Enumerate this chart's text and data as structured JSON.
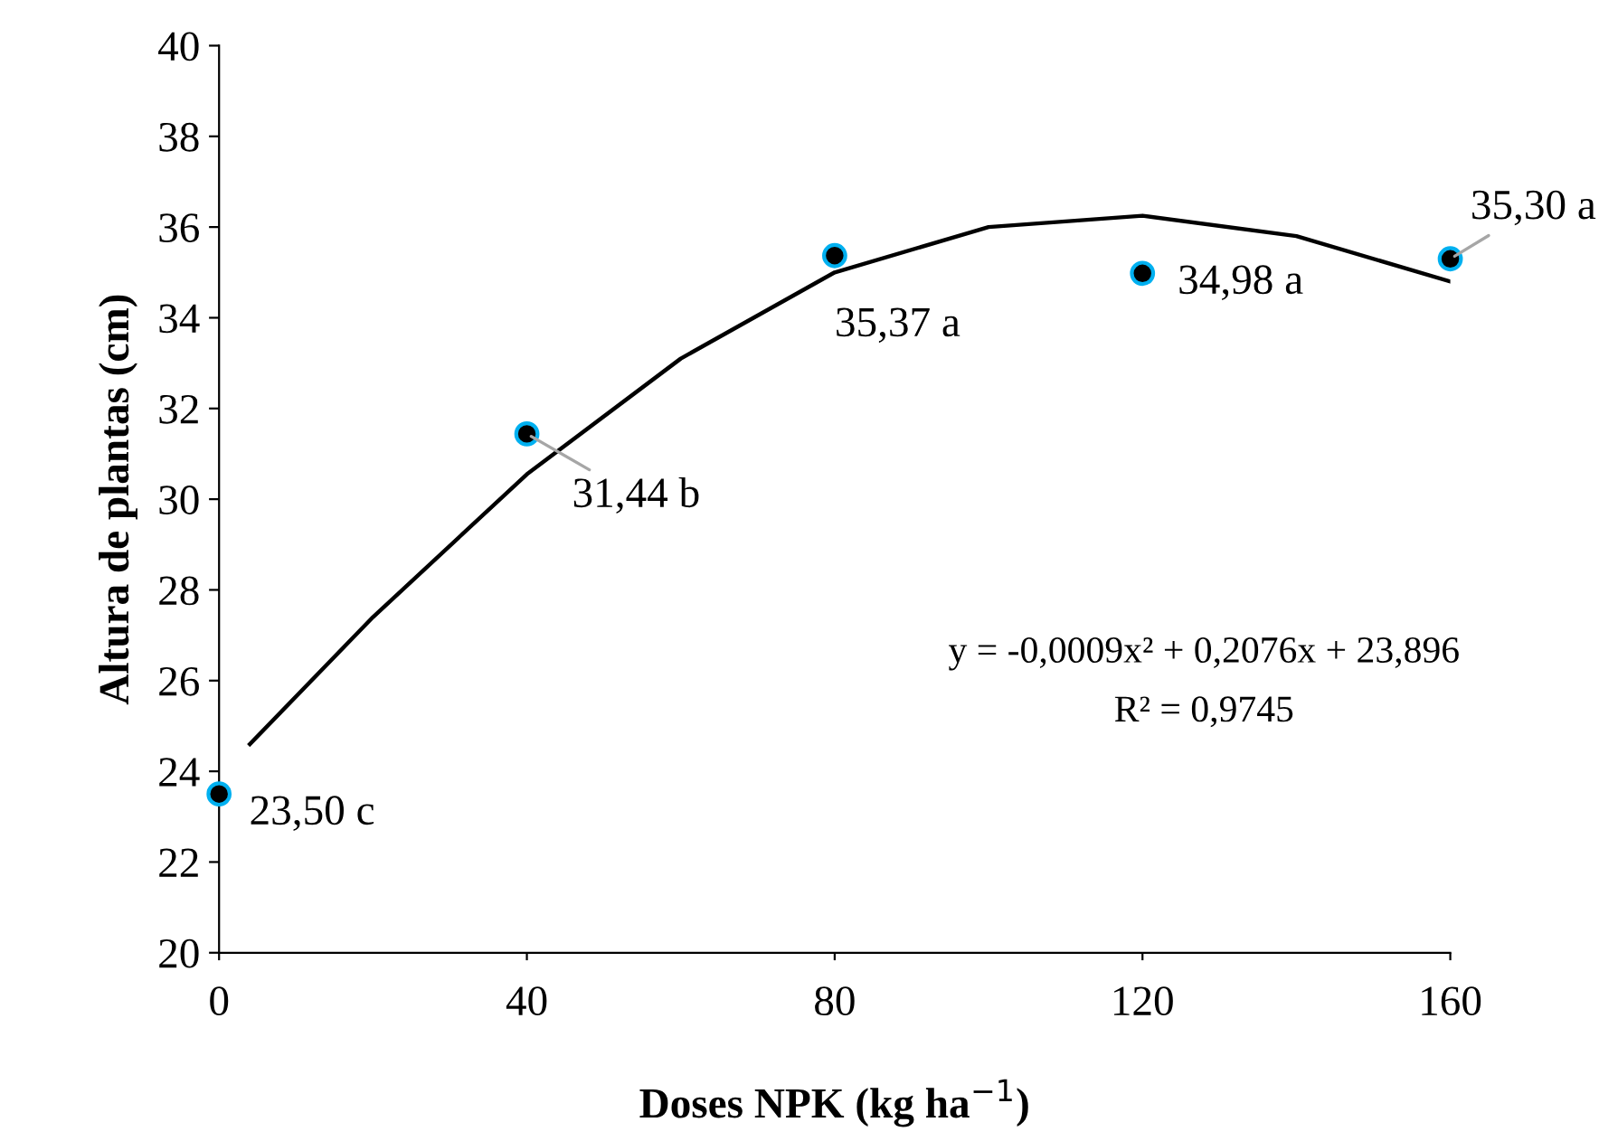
{
  "chart_data": {
    "type": "scatter",
    "xlabel": "Doses NPK (kg ha$^{−1}$)",
    "ylabel": "Altura de plantas (cm)",
    "xlim": [
      0,
      160
    ],
    "xticks": [
      0,
      40,
      80,
      120,
      160
    ],
    "ylim": [
      20,
      40
    ],
    "yticks": [
      20,
      22,
      24,
      26,
      28,
      30,
      32,
      34,
      36,
      38,
      40
    ],
    "grid": false,
    "legend": false,
    "series": [
      {
        "x": [
          0,
          40,
          80,
          120,
          160
        ],
        "values": [
          23.5,
          31.44,
          35.37,
          34.98,
          35.3
        ],
        "color": "#00b0f0",
        "marker": "circle",
        "value_labels": [
          "23,50 c",
          "31,44 b",
          "35,37 a",
          "34,98 a",
          "35,30 a"
        ]
      },
      {
        "type": "line",
        "x": [
          4,
          20,
          40,
          60,
          80,
          100,
          120,
          140,
          160
        ],
        "values": [
          24.6,
          27.4,
          30.55,
          33.1,
          35.0,
          36.0,
          36.25,
          35.8,
          34.8
        ],
        "color": "#000000",
        "marker": "none",
        "line_style": "solid"
      }
    ],
    "annotations": [
      "y = -0,0009x² + 0,2076x + 23,896",
      "R² = 0,9745"
    ]
  }
}
